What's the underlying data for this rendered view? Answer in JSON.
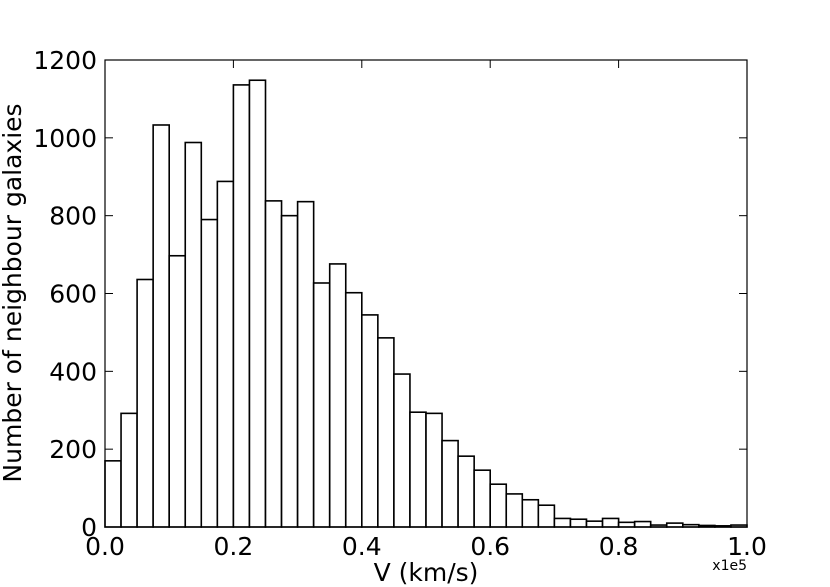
{
  "chart_data": {
    "type": "bar",
    "xlabel": "V (km/s)",
    "ylabel": "Number of neighbour galaxies",
    "x_offset_label": "x1e5",
    "xlim": [
      0.0,
      1.0
    ],
    "ylim": [
      0,
      1200
    ],
    "xticks": [
      "0.0",
      "0.2",
      "0.4",
      "0.6",
      "0.8",
      "1.0"
    ],
    "yticks": [
      "0",
      "200",
      "400",
      "600",
      "800",
      "1000",
      "1200"
    ],
    "grid": false,
    "bin_width": 0.025,
    "bin_starts": [
      0.0,
      0.025,
      0.05,
      0.075,
      0.1,
      0.125,
      0.15,
      0.175,
      0.2,
      0.225,
      0.25,
      0.275,
      0.3,
      0.325,
      0.35,
      0.375,
      0.4,
      0.425,
      0.45,
      0.475,
      0.5,
      0.525,
      0.55,
      0.575,
      0.6,
      0.625,
      0.65,
      0.675,
      0.7,
      0.725,
      0.75,
      0.775,
      0.8,
      0.825,
      0.85,
      0.875,
      0.9,
      0.925,
      0.95,
      0.975
    ],
    "values": [
      170,
      292,
      636,
      1033,
      697,
      988,
      790,
      888,
      1136,
      1148,
      838,
      800,
      836,
      627,
      676,
      602,
      545,
      486,
      393,
      295,
      292,
      222,
      182,
      146,
      110,
      85,
      70,
      56,
      22,
      20,
      15,
      22,
      12,
      14,
      5,
      10,
      6,
      4,
      3,
      5
    ]
  }
}
